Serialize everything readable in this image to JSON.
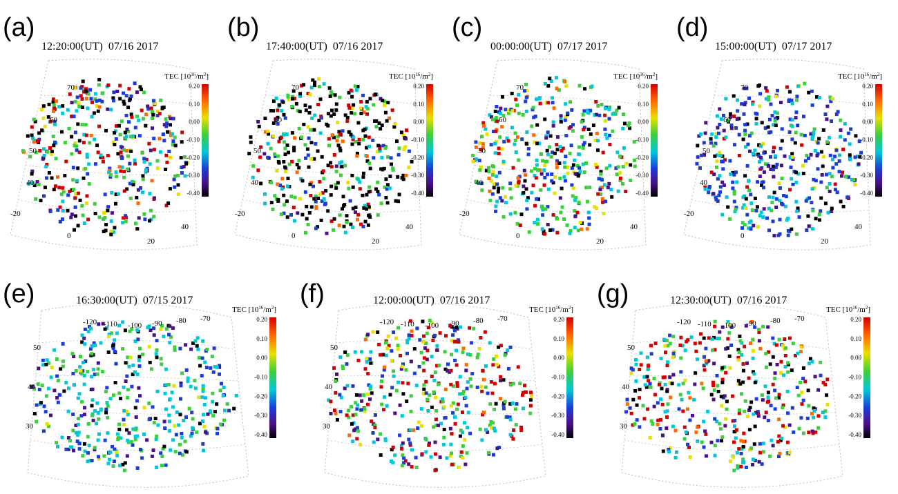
{
  "colorbar": {
    "title": {
      "prefix": "TEC [10",
      "exp1": "16",
      "mid": "/m",
      "exp2": "2",
      "suffix": "]"
    },
    "ticks": [
      "0.20",
      "0.10",
      "0.00",
      "-0.10",
      "-0.20",
      "-0.30",
      "-0.40"
    ]
  },
  "panels": [
    {
      "label": "(a)",
      "time": "12:20:00(UT)  07/16 2017",
      "map_labels": [
        "70",
        "60",
        "50",
        "40",
        "-20",
        "0",
        "20",
        "40"
      ]
    },
    {
      "label": "(b)",
      "time": "17:40:00(UT)  07/16 2017",
      "map_labels": [
        "70",
        "60",
        "50",
        "40",
        "-20",
        "0",
        "20",
        "40"
      ]
    },
    {
      "label": "(c)",
      "time": "00:00:00(UT)  07/17 2017",
      "map_labels": [
        "70",
        "60",
        "50",
        "40",
        "-20",
        "0",
        "20",
        "40"
      ]
    },
    {
      "label": "(d)",
      "time": "15:00:00(UT)  07/17 2017",
      "map_labels": [
        "70",
        "60",
        "50",
        "40",
        "-20",
        "0",
        "20",
        "40"
      ]
    },
    {
      "label": "(e)",
      "time": "16:30:00(UT)  07/15 2017",
      "map_labels": [
        "-120",
        "-110",
        "-100",
        "-90",
        "-80",
        "-70",
        "50",
        "40",
        "30"
      ]
    },
    {
      "label": "(f)",
      "time": "12:00:00(UT)  07/16 2017",
      "map_labels": [
        "-120",
        "-110",
        "-100",
        "-90",
        "-80",
        "-70",
        "50",
        "40",
        "30"
      ]
    },
    {
      "label": "(g)",
      "time": "12:30:00(UT)  07/16 2017",
      "map_labels": [
        "-120",
        "-110",
        "-100",
        "-90",
        "-80",
        "-70",
        "50",
        "40",
        "30"
      ]
    }
  ]
}
